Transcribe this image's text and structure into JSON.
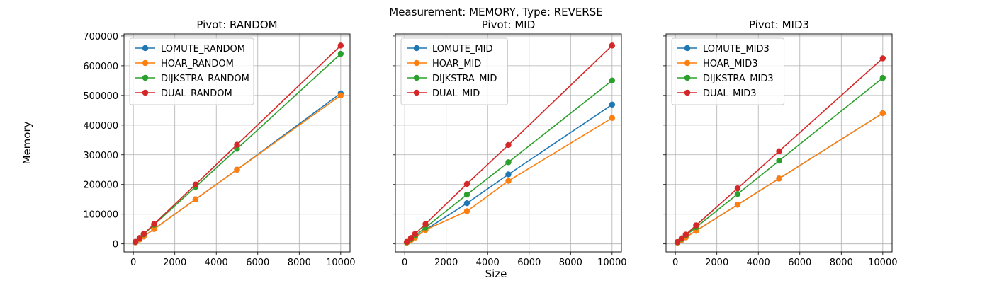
{
  "figure": {
    "suptitle": "Measurement: MEMORY, Type: REVERSE",
    "xlabel": "Size",
    "ylabel": "Memory"
  },
  "chart_data": [
    {
      "type": "line",
      "title": "Pivot: RANDOM",
      "xlabel": "",
      "ylabel": "",
      "x": [
        100,
        300,
        500,
        1000,
        3000,
        5000,
        10000
      ],
      "xlim": [
        -450,
        10450
      ],
      "ylim": [
        -27000,
        707000
      ],
      "xticks": [
        0,
        2000,
        4000,
        6000,
        8000,
        10000
      ],
      "yticks": [
        0,
        100000,
        200000,
        300000,
        400000,
        500000,
        600000,
        700000
      ],
      "show_ytick_labels": true,
      "grid": true,
      "legend": "top-left",
      "series": [
        {
          "name": "LOMUTE_RANDOM",
          "color": "#1f77b4",
          "values": [
            5000,
            15000,
            25000,
            50000,
            150000,
            250000,
            507000
          ]
        },
        {
          "name": "HOAR_RANDOM",
          "color": "#ff7f0e",
          "values": [
            5000,
            15000,
            25000,
            50000,
            150000,
            250000,
            500000
          ]
        },
        {
          "name": "DIJKSTRA_RANDOM",
          "color": "#2ca02c",
          "values": [
            6400,
            19200,
            32000,
            64000,
            192000,
            320000,
            640000
          ]
        },
        {
          "name": "DUAL_RANDOM",
          "color": "#d62728",
          "values": [
            6700,
            20000,
            33400,
            66700,
            200000,
            334000,
            668000
          ]
        }
      ]
    },
    {
      "type": "line",
      "title": "Pivot: MID",
      "xlabel": "",
      "ylabel": "",
      "x": [
        100,
        300,
        500,
        1000,
        3000,
        5000,
        10000
      ],
      "xlim": [
        -450,
        10450
      ],
      "ylim": [
        -27000,
        707000
      ],
      "xticks": [
        0,
        2000,
        4000,
        6000,
        8000,
        10000
      ],
      "yticks": [
        0,
        100000,
        200000,
        300000,
        400000,
        500000,
        600000,
        700000
      ],
      "show_ytick_labels": false,
      "grid": true,
      "legend": "top-left",
      "series": [
        {
          "name": "LOMUTE_MID",
          "color": "#1f77b4",
          "values": [
            4700,
            14000,
            23400,
            47000,
            137000,
            234000,
            469000
          ]
        },
        {
          "name": "HOAR_MID",
          "color": "#ff7f0e",
          "values": [
            4200,
            12700,
            21000,
            47000,
            110000,
            212000,
            424000
          ]
        },
        {
          "name": "DIJKSTRA_MID",
          "color": "#2ca02c",
          "values": [
            5500,
            16500,
            27500,
            55000,
            166000,
            275000,
            550000
          ]
        },
        {
          "name": "DUAL_MID",
          "color": "#d62728",
          "values": [
            6700,
            20000,
            33400,
            66700,
            202000,
            333000,
            668000
          ]
        }
      ]
    },
    {
      "type": "line",
      "title": "Pivot: MID3",
      "xlabel": "",
      "ylabel": "",
      "x": [
        100,
        300,
        500,
        1000,
        3000,
        5000,
        10000
      ],
      "xlim": [
        -450,
        10450
      ],
      "ylim": [
        -27000,
        707000
      ],
      "xticks": [
        0,
        2000,
        4000,
        6000,
        8000,
        10000
      ],
      "yticks": [
        0,
        100000,
        200000,
        300000,
        400000,
        500000,
        600000,
        700000
      ],
      "show_ytick_labels": false,
      "grid": true,
      "legend": "top-left",
      "series": [
        {
          "name": "LOMUTE_MID3",
          "color": "#1f77b4",
          "values": [
            4400,
            13200,
            22000,
            44000,
            132000,
            220000,
            440000
          ]
        },
        {
          "name": "HOAR_MID3",
          "color": "#ff7f0e",
          "values": [
            4400,
            13200,
            22000,
            44000,
            132000,
            220000,
            440000
          ]
        },
        {
          "name": "DIJKSTRA_MID3",
          "color": "#2ca02c",
          "values": [
            5600,
            16800,
            28000,
            56000,
            168000,
            280000,
            559000
          ]
        },
        {
          "name": "DUAL_MID3",
          "color": "#d62728",
          "values": [
            6200,
            18700,
            31200,
            62400,
            187000,
            312000,
            625000
          ]
        }
      ]
    }
  ]
}
